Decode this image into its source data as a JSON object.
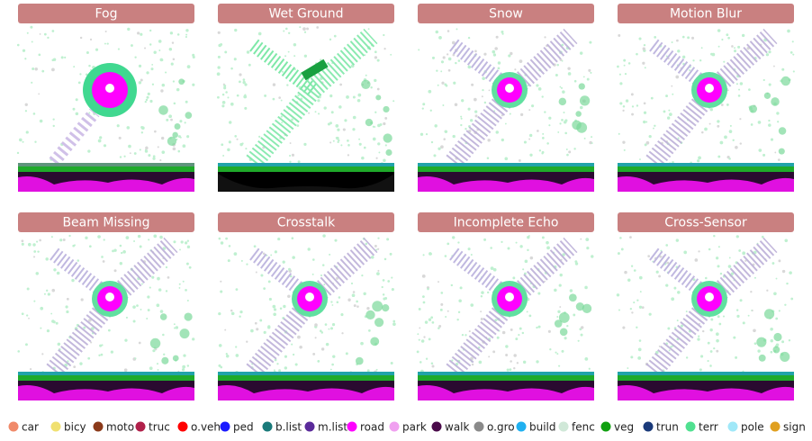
{
  "panels": [
    {
      "title": "Fog"
    },
    {
      "title": "Wet Ground"
    },
    {
      "title": "Snow"
    },
    {
      "title": "Motion Blur"
    },
    {
      "title": "Beam Missing"
    },
    {
      "title": "Crosstalk"
    },
    {
      "title": "Incomplete Echo"
    },
    {
      "title": "Cross-Sensor"
    }
  ],
  "legend": [
    {
      "label": "car",
      "color": "#f08a6a"
    },
    {
      "label": "bicy",
      "color": "#f0e070"
    },
    {
      "label": "moto",
      "color": "#8b3a1a"
    },
    {
      "label": "truc",
      "color": "#b0204a"
    },
    {
      "label": "o.veh",
      "color": "#ff0000"
    },
    {
      "label": "ped",
      "color": "#1a1aff"
    },
    {
      "label": "b.list",
      "color": "#1a7a7a"
    },
    {
      "label": "m.list",
      "color": "#5a2a9a"
    },
    {
      "label": "road",
      "color": "#ff00ff"
    },
    {
      "label": "park",
      "color": "#f0a0f0"
    },
    {
      "label": "walk",
      "color": "#4a0a4a"
    },
    {
      "label": "o.gro",
      "color": "#8a8a8a"
    },
    {
      "label": "build",
      "color": "#20b0f0"
    },
    {
      "label": "fenc",
      "color": "#d0e8d8"
    },
    {
      "label": "veg",
      "color": "#10a010"
    },
    {
      "label": "trun",
      "color": "#1a3a7a"
    },
    {
      "label": "terr",
      "color": "#50e090"
    },
    {
      "label": "pole",
      "color": "#a0e8f8"
    },
    {
      "label": "sign",
      "color": "#e0a020"
    }
  ]
}
